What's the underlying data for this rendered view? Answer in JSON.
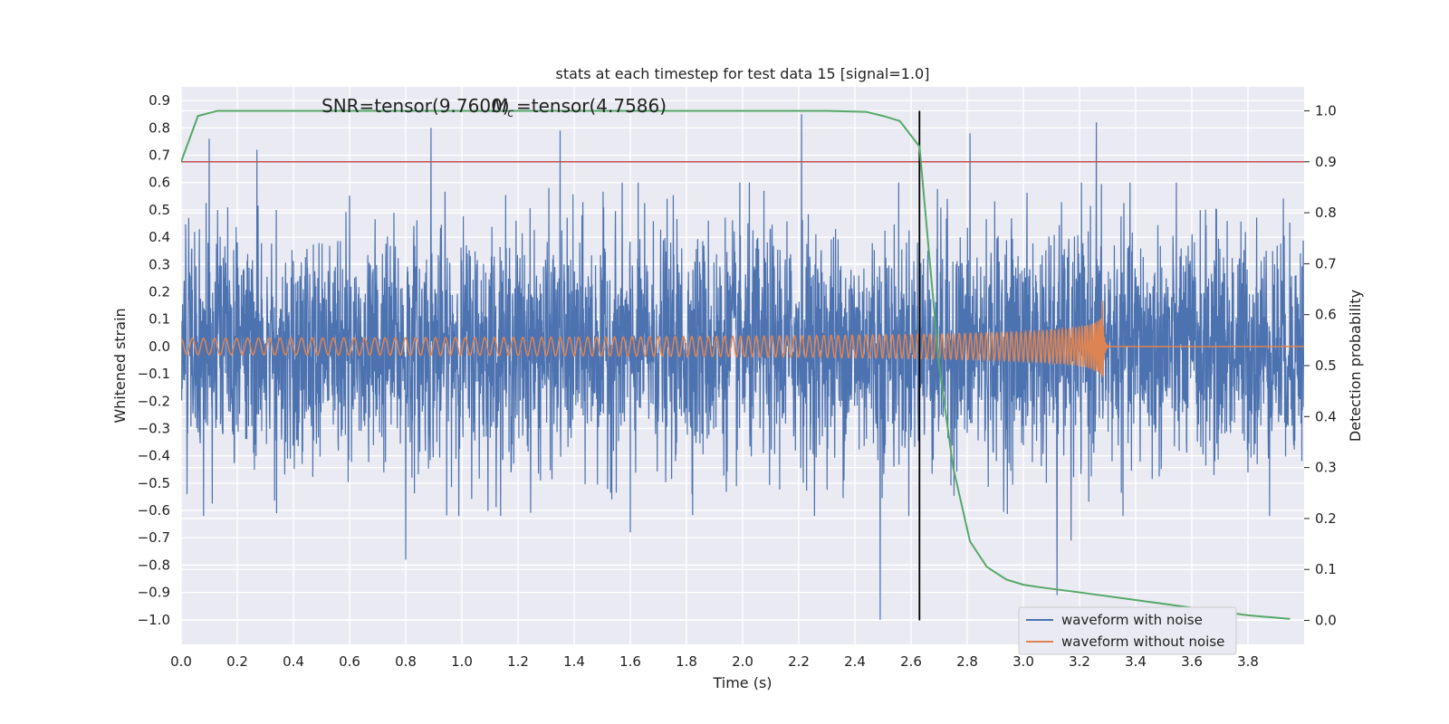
{
  "chart_data": {
    "type": "line",
    "title": "stats at each timestep for test data 15 [signal=1.0]",
    "xlabel": "Time (s)",
    "ylabel": "Whitened strain",
    "y2label": "Detection probability",
    "xlim": [
      0.0,
      4.0
    ],
    "ylim": [
      -1.09,
      0.95
    ],
    "y2lim": [
      -0.047,
      1.047
    ],
    "x_ticks": [
      0.0,
      0.2,
      0.4,
      0.6,
      0.8,
      1.0,
      1.2,
      1.4,
      1.6,
      1.8,
      2.0,
      2.2,
      2.4,
      2.6,
      2.8,
      3.0,
      3.2,
      3.4,
      3.6,
      3.8
    ],
    "x_tick_labels": [
      "0.0",
      "0.2",
      "0.4",
      "0.6",
      "0.8",
      "1.0",
      "1.2",
      "1.4",
      "1.6",
      "1.8",
      "2.0",
      "2.2",
      "2.4",
      "2.6",
      "2.8",
      "3.0",
      "3.2",
      "3.4",
      "3.6",
      "3.8"
    ],
    "y_ticks": [
      -1.0,
      -0.9,
      -0.8,
      -0.7,
      -0.6,
      -0.5,
      -0.4,
      -0.3,
      -0.2,
      -0.1,
      0.0,
      0.1,
      0.2,
      0.3,
      0.4,
      0.5,
      0.6,
      0.7,
      0.8,
      0.9
    ],
    "y_tick_labels": [
      "−1.0",
      "−0.9",
      "−0.8",
      "−0.7",
      "−0.6",
      "−0.5",
      "−0.4",
      "−0.3",
      "−0.2",
      "−0.1",
      "0.0",
      "0.1",
      "0.2",
      "0.3",
      "0.4",
      "0.5",
      "0.6",
      "0.7",
      "0.8",
      "0.9"
    ],
    "y2_ticks": [
      0.0,
      0.1,
      0.2,
      0.3,
      0.4,
      0.5,
      0.6,
      0.7,
      0.8,
      0.9,
      1.0
    ],
    "y2_tick_labels": [
      "0.0",
      "0.1",
      "0.2",
      "0.3",
      "0.4",
      "0.5",
      "0.6",
      "0.7",
      "0.8",
      "0.9",
      "1.0"
    ],
    "grid": true,
    "legend_position": "lower-right",
    "annotations": {
      "snr": "SNR=tensor(9.7600)",
      "mc": "=tensor(4.7586)"
    },
    "series": [
      {
        "name": "waveform with noise",
        "color": "#4c72b0",
        "description_only": false,
        "approx_amplitude": 0.28,
        "peaks": [
          [
            0.1,
            0.76
          ],
          [
            0.27,
            0.72
          ],
          [
            0.89,
            0.8
          ],
          [
            1.35,
            0.79
          ],
          [
            2.21,
            0.85
          ],
          [
            2.81,
            0.78
          ],
          [
            3.26,
            0.82
          ],
          [
            0.8,
            -0.78
          ],
          [
            1.6,
            -0.68
          ],
          [
            2.49,
            -1.0
          ],
          [
            3.12,
            -0.91
          ],
          [
            0.34,
            -0.61
          ],
          [
            3.17,
            -0.71
          ]
        ]
      },
      {
        "name": "waveform without noise",
        "color": "#dd8452",
        "chirp": {
          "start_amplitude": 0.03,
          "peak_amplitude": 0.22,
          "merger_time": 3.28,
          "start_freq_hz": 25,
          "end_freq_hz": 200
        }
      },
      {
        "name": "Detection probability",
        "color": "#55a868",
        "axis": "right",
        "x": [
          0.0,
          0.06,
          0.13,
          0.3,
          1.0,
          2.0,
          2.3,
          2.44,
          2.5,
          2.56,
          2.63,
          2.7,
          2.75,
          2.81,
          2.87,
          2.94,
          3.0,
          3.06,
          3.2,
          3.4,
          3.6,
          3.8,
          3.95
        ],
        "values": [
          0.9,
          0.99,
          1.0,
          1.0,
          1.0,
          1.0,
          1.0,
          0.998,
          0.99,
          0.98,
          0.93,
          0.5,
          0.3,
          0.155,
          0.105,
          0.08,
          0.07,
          0.065,
          0.055,
          0.04,
          0.025,
          0.01,
          0.003
        ]
      }
    ],
    "threshold_line": {
      "value": 0.9,
      "axis": "right",
      "color": "#c44e52"
    },
    "vertical_line": {
      "x": 2.63,
      "color": "#000000"
    }
  }
}
